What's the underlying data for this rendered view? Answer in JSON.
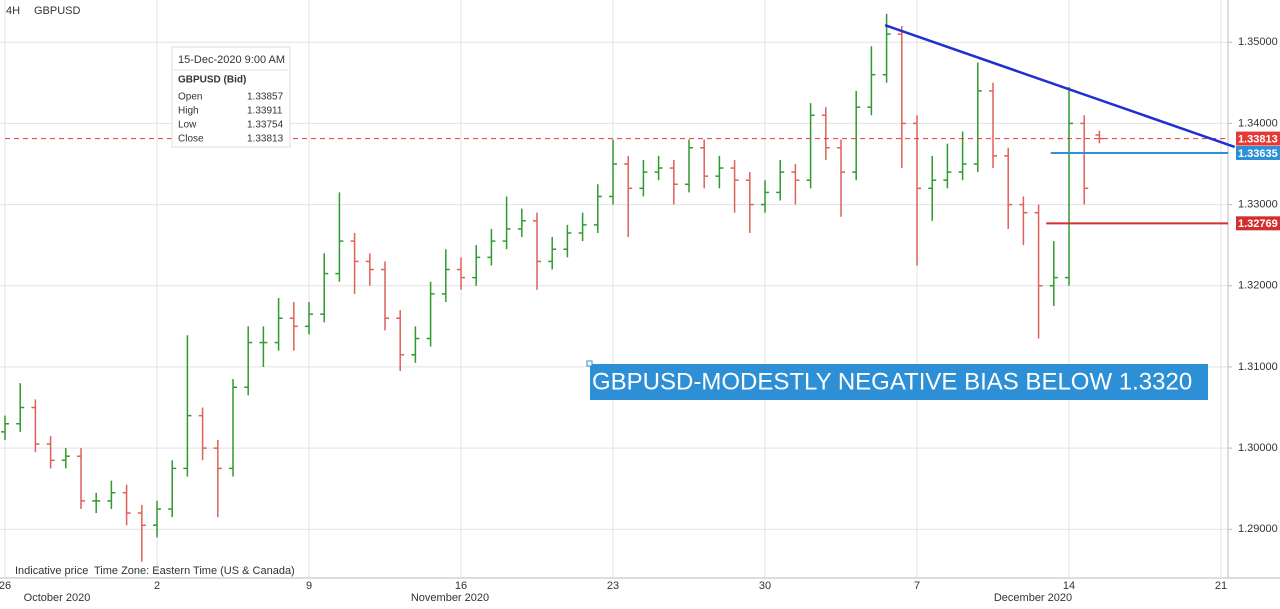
{
  "chart_data": {
    "type": "ohlc",
    "timeframe": "4H",
    "title": "GBPUSD",
    "categories": [
      "26",
      null,
      null,
      null,
      null,
      null,
      null,
      null,
      null,
      null,
      "2",
      null,
      null,
      null,
      null,
      null,
      null,
      null,
      null,
      null,
      "9",
      null,
      null,
      null,
      null,
      null,
      null,
      null,
      null,
      null,
      "16",
      null,
      null,
      null,
      null,
      null,
      null,
      null,
      null,
      null,
      "23",
      null,
      null,
      null,
      null,
      null,
      null,
      null,
      null,
      null,
      "30",
      null,
      null,
      null,
      null,
      null,
      null,
      null,
      null,
      null,
      "7",
      null,
      null,
      null,
      null,
      null,
      null,
      null,
      null,
      null,
      "14",
      null,
      null,
      null,
      null,
      null,
      null,
      null,
      null,
      null,
      "21"
    ],
    "open": [
      1.302,
      1.303,
      1.305,
      1.3005,
      1.2985,
      1.299,
      1.2935,
      1.2935,
      1.2945,
      1.292,
      1.2905,
      1.2925,
      1.2975,
      1.304,
      1.3,
      1.2975,
      1.3075,
      1.313,
      1.313,
      1.316,
      1.315,
      1.3165,
      1.3215,
      1.3255,
      1.323,
      1.322,
      1.316,
      1.3115,
      1.3135,
      1.319,
      1.322,
      1.321,
      1.3235,
      1.3255,
      1.327,
      1.328,
      1.323,
      1.3245,
      1.3265,
      1.3275,
      1.331,
      1.335,
      1.332,
      1.334,
      1.3345,
      1.3325,
      1.337,
      1.3335,
      1.3345,
      1.333,
      1.33,
      1.3315,
      1.334,
      1.333,
      1.341,
      1.337,
      1.334,
      1.342,
      1.346,
      1.351,
      1.34,
      1.332,
      1.333,
      1.334,
      1.335,
      1.344,
      1.336,
      1.33,
      1.329,
      1.32,
      1.321,
      1.34,
      1.33857,
      null,
      null,
      null,
      null,
      null,
      null,
      null,
      null
    ],
    "high": [
      1.304,
      1.308,
      1.306,
      1.3015,
      1.3,
      1.3,
      1.2945,
      1.296,
      1.2955,
      1.293,
      1.2935,
      1.2985,
      1.3139,
      1.305,
      1.301,
      1.3085,
      1.315,
      1.315,
      1.3185,
      1.318,
      1.318,
      1.324,
      1.3315,
      1.3265,
      1.324,
      1.323,
      1.317,
      1.315,
      1.3205,
      1.3245,
      1.3235,
      1.325,
      1.327,
      1.331,
      1.3295,
      1.329,
      1.326,
      1.3275,
      1.329,
      1.3325,
      1.338,
      1.336,
      1.3355,
      1.336,
      1.3355,
      1.338,
      1.338,
      1.336,
      1.3355,
      1.334,
      1.333,
      1.3355,
      1.335,
      1.3425,
      1.342,
      1.338,
      1.344,
      1.3495,
      1.3535,
      1.352,
      1.341,
      1.336,
      1.3375,
      1.339,
      1.3475,
      1.345,
      1.337,
      1.331,
      1.33,
      1.3255,
      1.3445,
      1.341,
      1.33911,
      null,
      null,
      null,
      null,
      null,
      null,
      null,
      null
    ],
    "low": [
      1.301,
      1.302,
      1.2995,
      1.2975,
      1.2975,
      1.2925,
      1.292,
      1.2925,
      1.2905,
      1.286,
      1.289,
      1.2915,
      1.2965,
      1.2985,
      1.2915,
      1.2965,
      1.3065,
      1.31,
      1.312,
      1.312,
      1.314,
      1.3155,
      1.3205,
      1.319,
      1.32,
      1.3145,
      1.3095,
      1.3105,
      1.3125,
      1.318,
      1.3195,
      1.32,
      1.3225,
      1.3245,
      1.326,
      1.3195,
      1.322,
      1.3235,
      1.3255,
      1.3265,
      1.33,
      1.326,
      1.331,
      1.333,
      1.33,
      1.3315,
      1.332,
      1.332,
      1.329,
      1.3265,
      1.329,
      1.3305,
      1.33,
      1.332,
      1.3355,
      1.3285,
      1.333,
      1.341,
      1.345,
      1.3345,
      1.3225,
      1.328,
      1.332,
      1.333,
      1.334,
      1.3345,
      1.327,
      1.325,
      1.3135,
      1.3175,
      1.32,
      1.33,
      1.33754,
      null,
      null,
      null,
      null,
      null,
      null,
      null,
      null
    ],
    "close": [
      1.303,
      1.305,
      1.3005,
      1.2985,
      1.299,
      1.2935,
      1.2935,
      1.2945,
      1.292,
      1.2905,
      1.2925,
      1.2975,
      1.304,
      1.3,
      1.2975,
      1.3075,
      1.313,
      1.313,
      1.316,
      1.315,
      1.3165,
      1.3215,
      1.3255,
      1.323,
      1.322,
      1.316,
      1.3115,
      1.3135,
      1.319,
      1.322,
      1.321,
      1.3235,
      1.3255,
      1.327,
      1.328,
      1.323,
      1.3245,
      1.3265,
      1.3275,
      1.331,
      1.335,
      1.332,
      1.334,
      1.3345,
      1.3325,
      1.337,
      1.3335,
      1.3345,
      1.333,
      1.33,
      1.3315,
      1.334,
      1.333,
      1.341,
      1.337,
      1.334,
      1.342,
      1.346,
      1.351,
      1.34,
      1.332,
      1.333,
      1.334,
      1.335,
      1.344,
      1.336,
      1.33,
      1.329,
      1.32,
      1.321,
      1.34,
      1.332,
      1.33813,
      null,
      null,
      null,
      null,
      null,
      null,
      null,
      null
    ],
    "up_color": "#2e9b2e",
    "down_color": "#e0605a",
    "ylim": [
      1.284,
      1.3552
    ],
    "yticks": [
      {
        "value": 1.29,
        "label": "1.29000"
      },
      {
        "value": 1.3,
        "label": "1.30000"
      },
      {
        "value": 1.31,
        "label": "1.31000"
      },
      {
        "value": 1.32,
        "label": "1.32000"
      },
      {
        "value": 1.33,
        "label": "1.33000"
      },
      {
        "value": 1.34,
        "label": "1.34000"
      },
      {
        "value": 1.35,
        "label": "1.35000"
      }
    ],
    "grid": true,
    "month_labels": [
      "October 2020",
      "November 2020",
      "December 2020"
    ],
    "footer_notes": [
      "Indicative price",
      "Time Zone: Eastern Time (US & Canada)"
    ],
    "tooltip": {
      "date": "15-Dec-2020 9:00 AM",
      "instrument": "GBPUSD (Bid)",
      "fields": [
        "Open",
        "High",
        "Low",
        "Close"
      ]
    },
    "levels": [
      {
        "value": 1.33813,
        "color": "#e53935",
        "x_start": 0,
        "dashed": true
      },
      {
        "value": 1.33635,
        "color": "#2d8fd5",
        "x_start": 68.8,
        "dashed": false
      },
      {
        "value": 1.32769,
        "color": "#d32f2f",
        "x_start": 68.5,
        "dashed": false
      }
    ],
    "trendline": {
      "x": [
        57.9,
        80.9
      ],
      "y": [
        1.3521,
        1.3371
      ],
      "color": "#1f2fd0"
    },
    "annotation": "GBPUSD-MODESTLY NEGATIVE BIAS BELOW 1.3320"
  }
}
